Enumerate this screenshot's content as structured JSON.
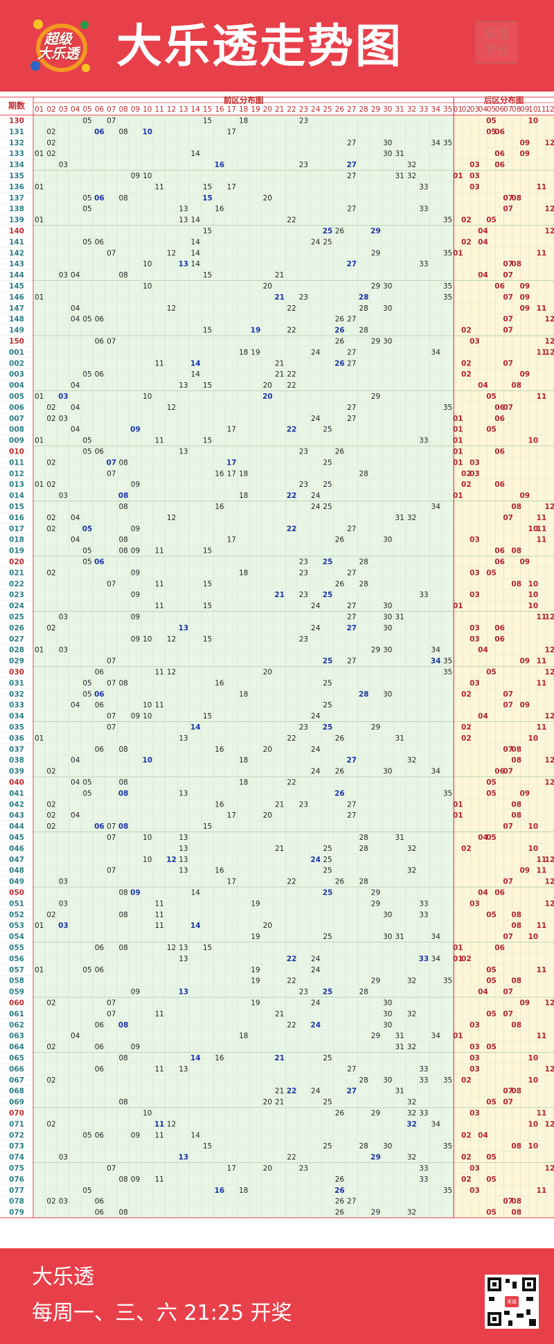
{
  "header": {
    "logo_line1": "超级",
    "logo_line2": "大乐透",
    "title": "大乐透走势图",
    "stamp_line1": "采道",
    "stamp_line2": "平台"
  },
  "footer": {
    "name": "大乐透",
    "schedule": "每周一、三、六 21:25 开奖",
    "qr_badge": "采道"
  },
  "colors": {
    "brand_red": "#e8404a",
    "front_zone_bg": "#e9f6e6",
    "back_zone_bg": "#fdf6da",
    "front_blue": "#1a33a6",
    "back_red": "#b0232e",
    "period_teal": "#2a7f86",
    "period_red": "#c22a2a"
  },
  "chart_data": {
    "type": "table",
    "period_header": "期数",
    "front_header": "前区分布图",
    "back_header": "后区分布图",
    "front_columns": [
      "01",
      "02",
      "03",
      "04",
      "05",
      "06",
      "07",
      "08",
      "09",
      "10",
      "11",
      "12",
      "13",
      "14",
      "15",
      "16",
      "17",
      "18",
      "19",
      "20",
      "21",
      "22",
      "23",
      "24",
      "25",
      "26",
      "27",
      "28",
      "29",
      "30",
      "31",
      "32",
      "33",
      "34",
      "35"
    ],
    "back_columns": [
      "01",
      "02",
      "03",
      "04",
      "05",
      "06",
      "07",
      "08",
      "09",
      "10",
      "11",
      "12"
    ],
    "rows": [
      {
        "p": "130",
        "f": [
          5,
          7,
          15,
          18,
          23
        ],
        "b": [
          5,
          10
        ]
      },
      {
        "p": "131",
        "f": [
          2,
          6,
          8,
          10,
          17
        ],
        "b": [
          5,
          6
        ]
      },
      {
        "p": "132",
        "f": [
          2,
          27,
          30,
          34,
          35
        ],
        "b": [
          9,
          12
        ]
      },
      {
        "p": "133",
        "f": [
          1,
          2,
          14,
          30,
          31
        ],
        "b": [
          6,
          9
        ]
      },
      {
        "p": "134",
        "f": [
          3,
          16,
          23,
          27,
          32
        ],
        "b": [
          3,
          6
        ]
      },
      {
        "p": "135",
        "f": [
          9,
          10,
          27,
          31,
          32
        ],
        "b": [
          1,
          3
        ]
      },
      {
        "p": "136",
        "f": [
          1,
          11,
          15,
          17,
          33
        ],
        "b": [
          3,
          11
        ]
      },
      {
        "p": "137",
        "f": [
          5,
          6,
          8,
          15,
          20
        ],
        "b": [
          7,
          8
        ]
      },
      {
        "p": "138",
        "f": [
          5,
          13,
          16,
          27,
          33
        ],
        "b": [
          7,
          12
        ]
      },
      {
        "p": "139",
        "f": [
          1,
          13,
          14,
          22,
          35
        ],
        "b": [
          2,
          5
        ]
      },
      {
        "p": "140",
        "f": [
          15,
          25,
          26,
          29
        ],
        "b": [
          4,
          12
        ]
      },
      {
        "p": "141",
        "f": [
          5,
          6,
          14,
          24,
          25
        ],
        "b": [
          2,
          4
        ]
      },
      {
        "p": "142",
        "f": [
          7,
          12,
          14,
          29,
          35
        ],
        "b": [
          1,
          11
        ]
      },
      {
        "p": "143",
        "f": [
          10,
          13,
          14,
          27,
          33
        ],
        "b": [
          7,
          8
        ]
      },
      {
        "p": "144",
        "f": [
          3,
          4,
          8,
          15,
          21
        ],
        "b": [
          4,
          7
        ]
      },
      {
        "p": "145",
        "f": [
          10,
          20,
          29,
          30,
          35
        ],
        "b": [
          6,
          9
        ]
      },
      {
        "p": "146",
        "f": [
          1,
          21,
          23,
          28,
          35
        ],
        "b": [
          7,
          9
        ]
      },
      {
        "p": "147",
        "f": [
          4,
          12,
          22,
          28,
          30
        ],
        "b": [
          9,
          11
        ]
      },
      {
        "p": "148",
        "f": [
          4,
          5,
          6,
          26,
          27
        ],
        "b": [
          7,
          12
        ]
      },
      {
        "p": "149",
        "f": [
          15,
          19,
          22,
          26,
          28
        ],
        "b": [
          2,
          7
        ]
      },
      {
        "p": "150",
        "f": [
          6,
          7,
          26,
          29,
          30
        ],
        "b": [
          3,
          12
        ]
      },
      {
        "p": "001",
        "f": [
          18,
          19,
          24,
          27,
          34
        ],
        "b": [
          11,
          12
        ]
      },
      {
        "p": "002",
        "f": [
          11,
          14,
          21,
          26,
          27
        ],
        "b": [
          2,
          7
        ]
      },
      {
        "p": "003",
        "f": [
          5,
          6,
          14,
          21,
          22
        ],
        "b": [
          2,
          9
        ]
      },
      {
        "p": "004",
        "f": [
          4,
          13,
          15,
          20,
          22
        ],
        "b": [
          4,
          8
        ]
      },
      {
        "p": "005",
        "f": [
          1,
          3,
          10,
          20,
          29
        ],
        "b": [
          5,
          11
        ]
      },
      {
        "p": "006",
        "f": [
          2,
          4,
          12,
          27,
          35
        ],
        "b": [
          6,
          7
        ]
      },
      {
        "p": "007",
        "f": [
          2,
          3,
          24,
          27
        ],
        "b": [
          1,
          6
        ]
      },
      {
        "p": "008",
        "f": [
          4,
          9,
          17,
          22,
          25
        ],
        "b": [
          1,
          5
        ]
      },
      {
        "p": "009",
        "f": [
          1,
          5,
          11,
          15,
          33
        ],
        "b": [
          1,
          10
        ]
      },
      {
        "p": "010",
        "f": [
          5,
          6,
          13,
          23,
          26
        ],
        "b": [
          1,
          6
        ]
      },
      {
        "p": "011",
        "f": [
          2,
          7,
          8,
          17,
          25
        ],
        "b": [
          1,
          3
        ]
      },
      {
        "p": "012",
        "f": [
          7,
          16,
          17,
          18,
          28
        ],
        "b": [
          2,
          3
        ]
      },
      {
        "p": "013",
        "f": [
          1,
          2,
          9,
          23,
          25
        ],
        "b": [
          2,
          6
        ]
      },
      {
        "p": "014",
        "f": [
          3,
          8,
          18,
          22,
          24
        ],
        "b": [
          1,
          9
        ]
      },
      {
        "p": "015",
        "f": [
          8,
          16,
          24,
          25,
          34
        ],
        "b": [
          8,
          12
        ]
      },
      {
        "p": "016",
        "f": [
          2,
          4,
          12,
          31,
          32
        ],
        "b": [
          7,
          11
        ]
      },
      {
        "p": "017",
        "f": [
          2,
          5,
          9,
          22,
          27
        ],
        "b": [
          10,
          11
        ]
      },
      {
        "p": "018",
        "f": [
          4,
          8,
          17,
          26,
          30
        ],
        "b": [
          3,
          11
        ]
      },
      {
        "p": "019",
        "f": [
          5,
          8,
          9,
          11,
          15
        ],
        "b": [
          6,
          8
        ]
      },
      {
        "p": "020",
        "f": [
          5,
          6,
          23,
          25,
          28
        ],
        "b": [
          6,
          9
        ]
      },
      {
        "p": "021",
        "f": [
          2,
          9,
          18,
          23,
          27
        ],
        "b": [
          3,
          5
        ]
      },
      {
        "p": "022",
        "f": [
          7,
          11,
          15,
          26,
          28
        ],
        "b": [
          8,
          10
        ]
      },
      {
        "p": "023",
        "f": [
          9,
          21,
          23,
          25,
          33
        ],
        "b": [
          3,
          10
        ]
      },
      {
        "p": "024",
        "f": [
          11,
          15,
          24,
          27,
          30
        ],
        "b": [
          1,
          10
        ]
      },
      {
        "p": "025",
        "f": [
          3,
          9,
          27,
          30,
          31
        ],
        "b": [
          11,
          12
        ]
      },
      {
        "p": "026",
        "f": [
          2,
          13,
          24,
          27,
          30
        ],
        "b": [
          3,
          6
        ]
      },
      {
        "p": "027",
        "f": [
          9,
          10,
          12,
          15,
          23
        ],
        "b": [
          3,
          6
        ]
      },
      {
        "p": "028",
        "f": [
          1,
          3,
          29,
          30,
          34
        ],
        "b": [
          4,
          12
        ]
      },
      {
        "p": "029",
        "f": [
          7,
          25,
          27,
          34,
          35
        ],
        "b": [
          9,
          11
        ]
      },
      {
        "p": "030",
        "f": [
          6,
          11,
          12,
          20,
          35
        ],
        "b": [
          5,
          12
        ]
      },
      {
        "p": "031",
        "f": [
          5,
          7,
          8,
          16,
          25
        ],
        "b": [
          3,
          11
        ]
      },
      {
        "p": "032",
        "f": [
          5,
          6,
          18,
          28,
          30
        ],
        "b": [
          2,
          7
        ]
      },
      {
        "p": "033",
        "f": [
          4,
          6,
          10,
          11,
          25
        ],
        "b": [
          7,
          9
        ]
      },
      {
        "p": "034",
        "f": [
          7,
          9,
          10,
          15,
          24
        ],
        "b": [
          4,
          12
        ]
      },
      {
        "p": "035",
        "f": [
          7,
          14,
          23,
          25,
          29
        ],
        "b": [
          2,
          11
        ]
      },
      {
        "p": "036",
        "f": [
          1,
          13,
          22,
          26,
          31
        ],
        "b": [
          2,
          10
        ]
      },
      {
        "p": "037",
        "f": [
          6,
          8,
          16,
          20,
          24
        ],
        "b": [
          7,
          8
        ]
      },
      {
        "p": "038",
        "f": [
          4,
          10,
          18,
          27,
          32
        ],
        "b": [
          8,
          12
        ]
      },
      {
        "p": "039",
        "f": [
          2,
          24,
          26,
          30,
          34
        ],
        "b": [
          6,
          7
        ]
      },
      {
        "p": "040",
        "f": [
          4,
          5,
          8,
          18,
          22
        ],
        "b": [
          5,
          12
        ]
      },
      {
        "p": "041",
        "f": [
          5,
          8,
          13,
          26,
          35
        ],
        "b": [
          5,
          9
        ]
      },
      {
        "p": "042",
        "f": [
          2,
          16,
          21,
          23,
          27
        ],
        "b": [
          1,
          8
        ]
      },
      {
        "p": "043",
        "f": [
          2,
          4,
          17,
          20,
          27
        ],
        "b": [
          1,
          8
        ]
      },
      {
        "p": "044",
        "f": [
          2,
          6,
          7,
          8,
          15
        ],
        "b": [
          7,
          10
        ]
      },
      {
        "p": "045",
        "f": [
          7,
          10,
          13,
          28,
          31
        ],
        "b": [
          4,
          5
        ]
      },
      {
        "p": "046",
        "f": [
          13,
          21,
          25,
          28,
          32
        ],
        "b": [
          2,
          10
        ]
      },
      {
        "p": "047",
        "f": [
          10,
          12,
          13,
          24,
          25
        ],
        "b": [
          11,
          12
        ]
      },
      {
        "p": "048",
        "f": [
          7,
          13,
          16,
          25,
          32
        ],
        "b": [
          9,
          11
        ]
      },
      {
        "p": "049",
        "f": [
          3,
          17,
          22,
          26,
          28
        ],
        "b": [
          7,
          12
        ]
      },
      {
        "p": "050",
        "f": [
          8,
          9,
          14,
          25,
          29
        ],
        "b": [
          4,
          6
        ]
      },
      {
        "p": "051",
        "f": [
          3,
          11,
          19,
          29,
          33
        ],
        "b": [
          3,
          12
        ]
      },
      {
        "p": "052",
        "f": [
          2,
          8,
          11,
          30,
          33
        ],
        "b": [
          5,
          8
        ]
      },
      {
        "p": "053",
        "f": [
          1,
          3,
          11,
          14,
          20
        ],
        "b": [
          8,
          11
        ]
      },
      {
        "p": "054",
        "f": [
          19,
          25,
          30,
          31,
          34
        ],
        "b": [
          7,
          10
        ]
      },
      {
        "p": "055",
        "f": [
          6,
          8,
          12,
          13,
          15
        ],
        "b": [
          1,
          6
        ]
      },
      {
        "p": "056",
        "f": [
          13,
          22,
          24,
          33,
          34
        ],
        "b": [
          1,
          2
        ]
      },
      {
        "p": "057",
        "f": [
          1,
          5,
          6,
          19,
          24
        ],
        "b": [
          5,
          11
        ]
      },
      {
        "p": "058",
        "f": [
          19,
          22,
          29,
          32,
          35
        ],
        "b": [
          5,
          8
        ]
      },
      {
        "p": "059",
        "f": [
          9,
          13,
          23,
          25,
          28
        ],
        "b": [
          4,
          7
        ]
      },
      {
        "p": "060",
        "f": [
          2,
          7,
          19,
          24,
          30
        ],
        "b": [
          9,
          12
        ]
      },
      {
        "p": "061",
        "f": [
          7,
          11,
          21,
          30,
          32
        ],
        "b": [
          5,
          7
        ]
      },
      {
        "p": "062",
        "f": [
          6,
          8,
          22,
          24,
          30
        ],
        "b": [
          3,
          8
        ]
      },
      {
        "p": "063",
        "f": [
          4,
          18,
          29,
          31,
          34
        ],
        "b": [
          1,
          11
        ]
      },
      {
        "p": "064",
        "f": [
          2,
          6,
          9,
          31,
          32
        ],
        "b": [
          3,
          5
        ]
      },
      {
        "p": "065",
        "f": [
          8,
          14,
          16,
          21,
          25
        ],
        "b": [
          3,
          10
        ]
      },
      {
        "p": "066",
        "f": [
          6,
          11,
          13,
          27,
          33
        ],
        "b": [
          3,
          12
        ]
      },
      {
        "p": "067",
        "f": [
          2,
          28,
          30,
          33,
          35
        ],
        "b": [
          2,
          10
        ]
      },
      {
        "p": "068",
        "f": [
          21,
          22,
          24,
          27,
          31
        ],
        "b": [
          7,
          8
        ]
      },
      {
        "p": "069",
        "f": [
          8,
          20,
          21,
          25,
          32
        ],
        "b": [
          5,
          7
        ]
      },
      {
        "p": "070",
        "f": [
          10,
          26,
          29,
          32,
          33
        ],
        "b": [
          3,
          11
        ]
      },
      {
        "p": "071",
        "f": [
          2,
          11,
          12,
          32,
          34
        ],
        "b": [
          10,
          12
        ]
      },
      {
        "p": "072",
        "f": [
          5,
          6,
          9,
          11,
          14
        ],
        "b": [
          2,
          4
        ]
      },
      {
        "p": "073",
        "f": [
          15,
          25,
          28,
          30,
          35
        ],
        "b": [
          8,
          10
        ]
      },
      {
        "p": "074",
        "f": [
          3,
          13,
          22,
          29,
          32
        ],
        "b": [
          2,
          5
        ]
      },
      {
        "p": "075",
        "f": [
          7,
          17,
          20,
          23,
          33
        ],
        "b": [
          3,
          12
        ]
      },
      {
        "p": "076",
        "f": [
          8,
          9,
          11,
          26,
          33
        ],
        "b": [
          2,
          5
        ]
      },
      {
        "p": "077",
        "f": [
          5,
          16,
          18,
          26,
          35
        ],
        "b": [
          3,
          11
        ]
      },
      {
        "p": "078",
        "f": [
          2,
          3,
          6,
          26,
          27
        ],
        "b": [
          7,
          8
        ]
      },
      {
        "p": "079",
        "f": [
          6,
          8,
          26,
          29,
          32
        ],
        "b": [
          5,
          8
        ]
      }
    ]
  }
}
